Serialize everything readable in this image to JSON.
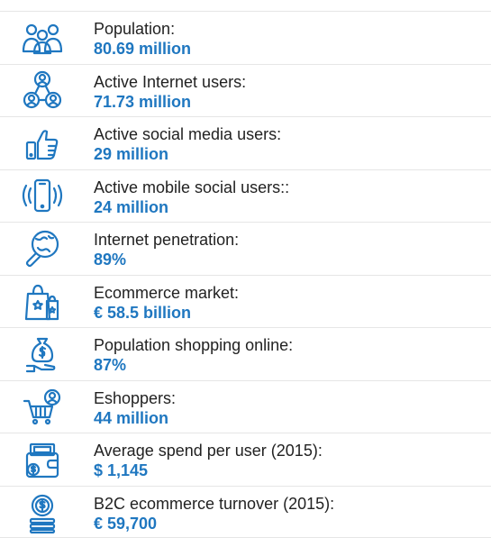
{
  "colors": {
    "accent": "#1f77c0",
    "text": "#222222",
    "divider": "#e6e6e6"
  },
  "stats": [
    {
      "icon": "people-group-icon",
      "label": "Population:",
      "value": "80.69 million"
    },
    {
      "icon": "network-users-icon",
      "label": "Active Internet users:",
      "value": "71.73 million"
    },
    {
      "icon": "thumbs-up-phone-icon",
      "label": "Active social media users:",
      "value": "29 million"
    },
    {
      "icon": "vibrating-phone-icon",
      "label": "Active mobile social users::",
      "value": "24 million"
    },
    {
      "icon": "globe-magnifier-icon",
      "label": "Internet penetration:",
      "value": "89%"
    },
    {
      "icon": "shopping-bags-icon",
      "label": "Ecommerce market:",
      "value": "€ 58.5 billion"
    },
    {
      "icon": "money-bag-hand-icon",
      "label": "Population shopping online:",
      "value": "87%"
    },
    {
      "icon": "shopping-cart-user-icon",
      "label": "Eshoppers:",
      "value": "44 million"
    },
    {
      "icon": "wallet-icon",
      "label": "Average spend per user (2015):",
      "value": "$ 1,145"
    },
    {
      "icon": "coin-stack-icon",
      "label": "B2C ecommerce turnover (2015):",
      "value": "€ 59,700"
    }
  ]
}
